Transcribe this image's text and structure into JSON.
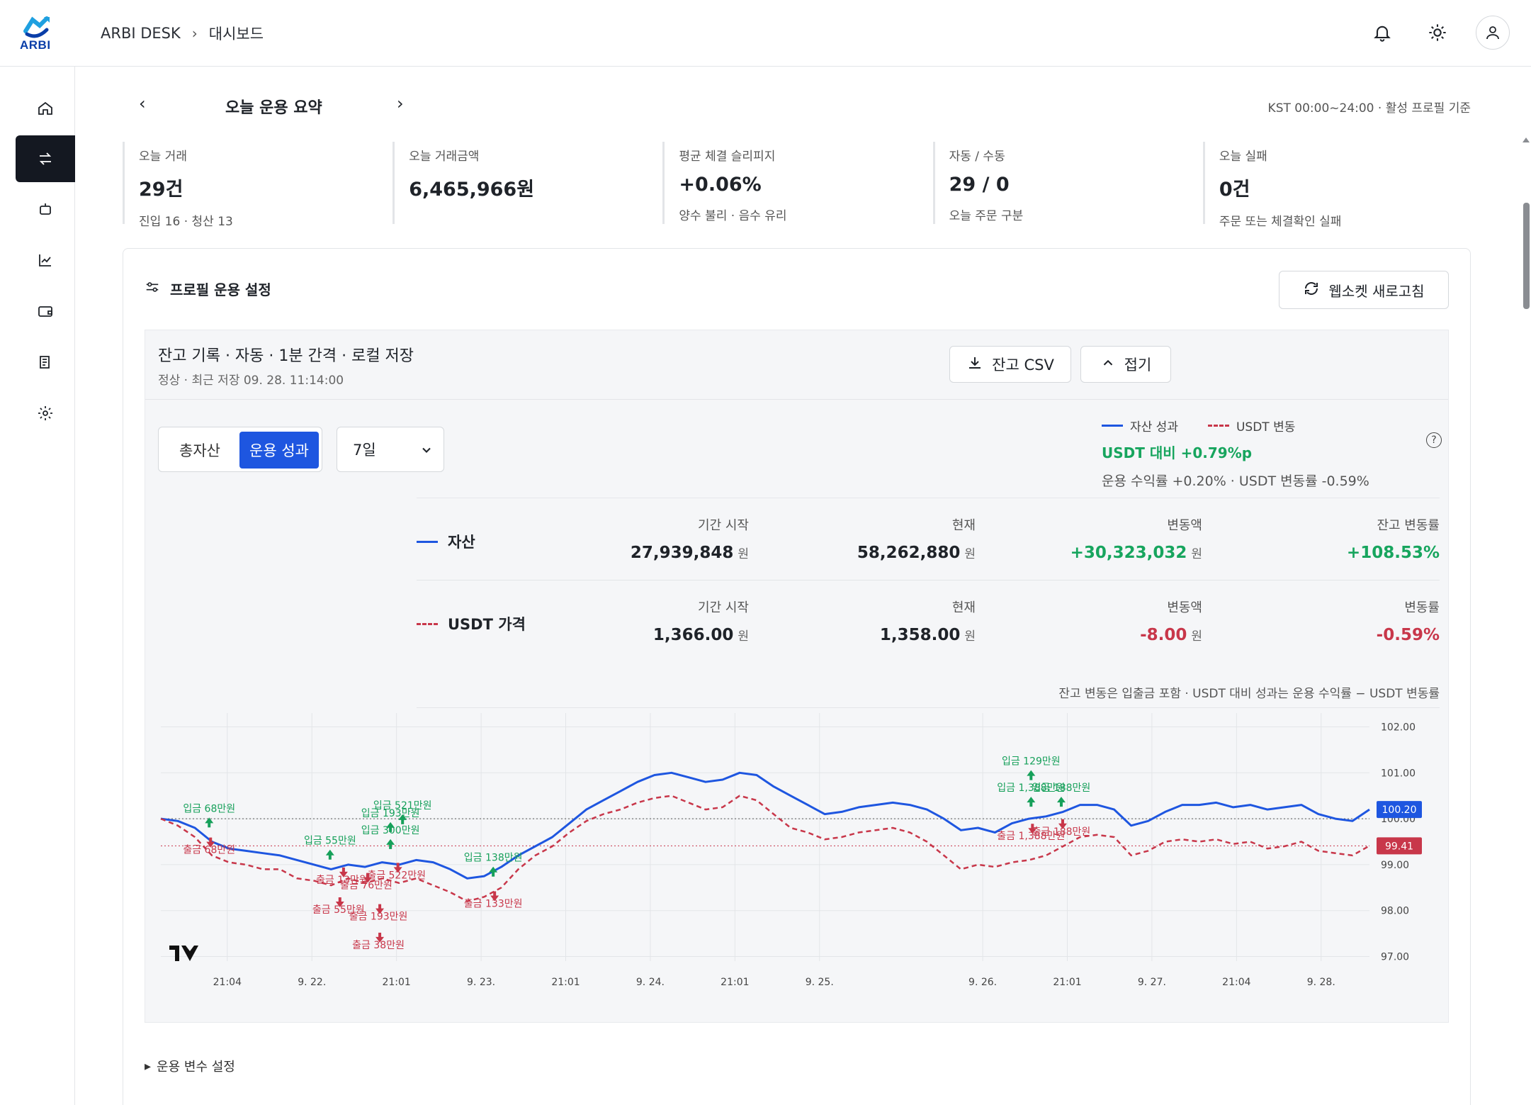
{
  "app": {
    "logo_text": "ARBI",
    "breadcrumb": [
      "ARBI DESK",
      "대시보드"
    ]
  },
  "sidebar": {
    "items": [
      {
        "name": "home-icon",
        "active": false
      },
      {
        "name": "swap-icon",
        "active": true
      },
      {
        "name": "bot-icon",
        "active": false
      },
      {
        "name": "chart-icon",
        "active": false
      },
      {
        "name": "wallet-icon",
        "active": false
      },
      {
        "name": "ledger-icon",
        "active": false
      },
      {
        "name": "gear-icon",
        "active": false
      }
    ]
  },
  "summary": {
    "title": "오늘 운용 요약",
    "note": "KST 00:00~24:00 · 활성 프로필 기준",
    "stats": [
      {
        "label": "오늘 거래",
        "value": "29건",
        "sub": "진입 16 · 청산 13"
      },
      {
        "label": "오늘 거래금액",
        "value": "6,465,966원",
        "sub": ""
      },
      {
        "label": "평균 체결 슬리피지",
        "value": "+0.06%",
        "sub": "양수 불리 · 음수 유리"
      },
      {
        "label": "자동 / 수동",
        "value": "29 / 0",
        "sub": "오늘 주문 구분"
      },
      {
        "label": "오늘 실패",
        "value": "0건",
        "sub": "주문 또는 체결확인 실패"
      }
    ]
  },
  "profile": {
    "title": "프로필 운용 설정",
    "ws_button": "웹소켓 새로고침",
    "panel_title": "잔고 기록 · 자동 · 1분 간격 · 로컬 저장",
    "panel_sub": "정상 · 최근 저장 09. 28. 11:14:00",
    "csv_button": "잔고 CSV",
    "collapse_button": "접기",
    "seg_total": "총자산",
    "seg_perf": "운용 성과",
    "period": "7일",
    "legend_asset": "자산 성과",
    "legend_usdt": "USDT 변동",
    "vs_usdt": "USDT 대비 +0.79%p",
    "vs_detail": "운용 수익률 +0.20% · USDT 변동률 -0.59%",
    "help": "?",
    "rows": [
      {
        "name": "자산",
        "cells": [
          {
            "label": "기간 시작",
            "value": "27,939,848",
            "unit": "원",
            "tone": ""
          },
          {
            "label": "현재",
            "value": "58,262,880",
            "unit": "원",
            "tone": ""
          },
          {
            "label": "변동액",
            "value": "+30,323,032",
            "unit": "원",
            "tone": "green"
          },
          {
            "label": "잔고 변동률",
            "value": "+108.53%",
            "unit": "",
            "tone": "green"
          }
        ]
      },
      {
        "name": "USDT 가격",
        "cells": [
          {
            "label": "기간 시작",
            "value": "1,366.00",
            "unit": "원",
            "tone": ""
          },
          {
            "label": "현재",
            "value": "1,358.00",
            "unit": "원",
            "tone": ""
          },
          {
            "label": "변동액",
            "value": "-8.00",
            "unit": "원",
            "tone": "red"
          },
          {
            "label": "변동률",
            "value": "-0.59%",
            "unit": "",
            "tone": "red"
          }
        ]
      }
    ],
    "table_note": "잔고 변동은 입출금 포함 · USDT 대비 성과는 운용 수익률 − USDT 변동률",
    "footer_toggle": "운용 변수 설정"
  },
  "colors": {
    "asset": "#1e56e0",
    "usdt": "#c8374a",
    "deposit": "#16a05a",
    "withdraw": "#c8374a"
  },
  "chart_data": {
    "type": "line",
    "x_tick_labels": [
      "21:04",
      "9. 22.",
      "21:01",
      "9. 23.",
      "21:01",
      "9. 24.",
      "21:01",
      "9. 25.",
      "9. 26.",
      "21:01",
      "9. 27.",
      "21:04",
      "9. 28."
    ],
    "x_ticks": [
      0.055,
      0.125,
      0.195,
      0.265,
      0.335,
      0.405,
      0.475,
      0.545,
      0.68,
      0.75,
      0.82,
      0.89,
      0.96
    ],
    "y_ticks": [
      102.0,
      101.0,
      100.0,
      99.0,
      98.0,
      97.0
    ],
    "y_tick_labels": [
      "102.00",
      "101.00",
      "100.00",
      "99.00",
      "98.00",
      "97.00"
    ],
    "ylim": [
      96.9,
      102.3
    ],
    "series": [
      {
        "name": "자산 성과",
        "last_label": "100.20",
        "values": [
          100,
          99.95,
          99.8,
          99.5,
          99.35,
          99.3,
          99.25,
          99.2,
          99.1,
          99.0,
          98.9,
          99.0,
          98.95,
          99.05,
          99.0,
          99.1,
          99.05,
          98.9,
          98.7,
          98.75,
          98.95,
          99.2,
          99.4,
          99.6,
          99.9,
          100.2,
          100.4,
          100.6,
          100.8,
          100.95,
          101.0,
          100.9,
          100.8,
          100.85,
          101.0,
          100.95,
          100.7,
          100.5,
          100.3,
          100.1,
          100.15,
          100.25,
          100.3,
          100.35,
          100.3,
          100.2,
          100.0,
          99.75,
          99.8,
          99.7,
          99.9,
          100.0,
          100.05,
          100.15,
          100.3,
          100.3,
          100.2,
          99.85,
          99.95,
          100.15,
          100.3,
          100.3,
          100.35,
          100.25,
          100.3,
          100.2,
          100.25,
          100.3,
          100.1,
          100.0,
          99.95,
          100.2
        ]
      },
      {
        "name": "USDT 변동",
        "last_label": "99.41",
        "values": [
          100,
          99.85,
          99.6,
          99.2,
          99.05,
          99.0,
          98.9,
          98.9,
          98.7,
          98.65,
          98.55,
          98.7,
          98.6,
          98.7,
          98.6,
          98.7,
          98.55,
          98.4,
          98.2,
          98.3,
          98.5,
          98.9,
          99.2,
          99.4,
          99.7,
          99.95,
          100.1,
          100.2,
          100.35,
          100.45,
          100.5,
          100.35,
          100.2,
          100.25,
          100.5,
          100.4,
          100.1,
          99.8,
          99.7,
          99.55,
          99.6,
          99.7,
          99.75,
          99.8,
          99.7,
          99.5,
          99.2,
          98.9,
          99.0,
          98.95,
          99.05,
          99.1,
          99.2,
          99.4,
          99.6,
          99.65,
          99.6,
          99.2,
          99.3,
          99.5,
          99.55,
          99.5,
          99.55,
          99.45,
          99.5,
          99.35,
          99.4,
          99.5,
          99.3,
          99.25,
          99.2,
          99.41
        ]
      }
    ],
    "reference_lines": [
      100.0,
      99.41
    ],
    "annotations": [
      {
        "kind": "deposit",
        "text": "입금 68만원",
        "x": 0.04,
        "y": 100.15
      },
      {
        "kind": "withdraw",
        "text": "출금 68만원",
        "x": 0.04,
        "y": 99.25
      },
      {
        "kind": "deposit",
        "text": "입금 521만원",
        "x": 0.2,
        "y": 100.22
      },
      {
        "kind": "deposit",
        "text": "입금 193만원",
        "x": 0.19,
        "y": 100.05
      },
      {
        "kind": "deposit",
        "text": "입금 300만원",
        "x": 0.19,
        "y": 99.68
      },
      {
        "kind": "deposit",
        "text": "입금 55만원",
        "x": 0.14,
        "y": 99.45
      },
      {
        "kind": "withdraw",
        "text": "출금 13만원",
        "x": 0.15,
        "y": 98.6
      },
      {
        "kind": "withdraw",
        "text": "출금 76만원",
        "x": 0.17,
        "y": 98.48
      },
      {
        "kind": "withdraw",
        "text": "출금 522만원",
        "x": 0.195,
        "y": 98.7
      },
      {
        "kind": "withdraw",
        "text": "출금 55만원",
        "x": 0.147,
        "y": 97.95
      },
      {
        "kind": "withdraw",
        "text": "출금 193만원",
        "x": 0.18,
        "y": 97.8
      },
      {
        "kind": "withdraw",
        "text": "출금 38만원",
        "x": 0.18,
        "y": 97.18
      },
      {
        "kind": "deposit",
        "text": "입금 138만원",
        "x": 0.275,
        "y": 99.08
      },
      {
        "kind": "withdraw",
        "text": "출금 133만원",
        "x": 0.275,
        "y": 98.08
      },
      {
        "kind": "deposit",
        "text": "입금 129만원",
        "x": 0.72,
        "y": 101.18
      },
      {
        "kind": "deposit",
        "text": "입금 1,388만원",
        "x": 0.72,
        "y": 100.6
      },
      {
        "kind": "deposit",
        "text": "입금 188만원",
        "x": 0.745,
        "y": 100.6
      },
      {
        "kind": "withdraw",
        "text": "출금 1,388만원",
        "x": 0.72,
        "y": 99.55
      },
      {
        "kind": "withdraw",
        "text": "출금 188만원",
        "x": 0.745,
        "y": 99.65
      }
    ]
  }
}
